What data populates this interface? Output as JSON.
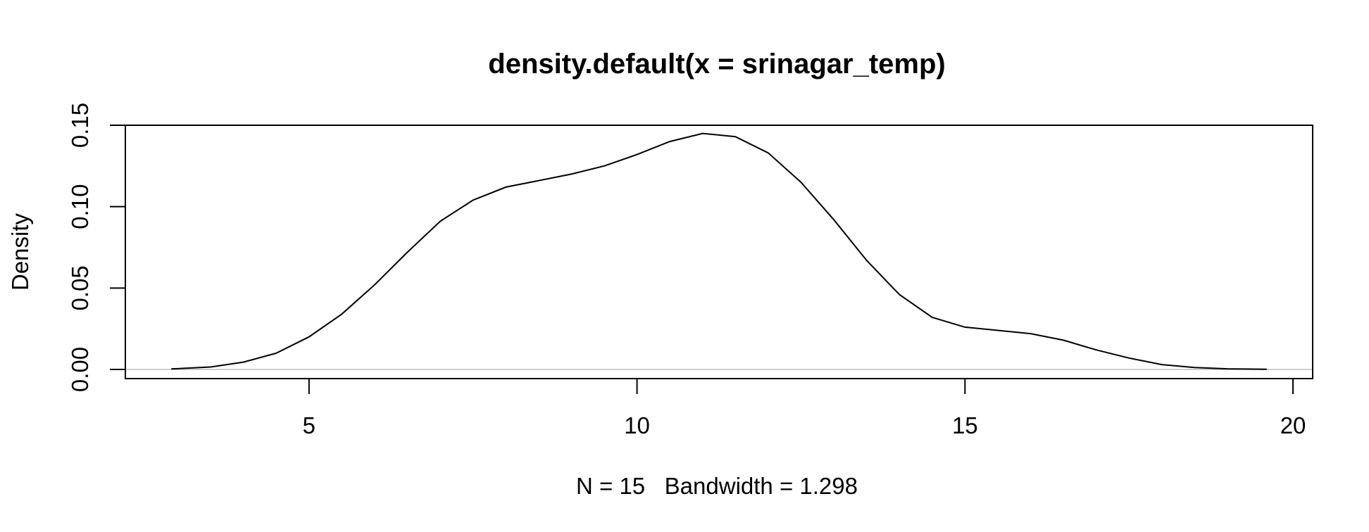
{
  "chart_data": {
    "type": "line",
    "title": "density.default(x = srinagar_temp)",
    "xlabel": "N = 15   Bandwidth = 1.298",
    "ylabel": "Density",
    "xlim": [
      2.2,
      20.3
    ],
    "ylim": [
      0,
      0.15
    ],
    "x_ticks": [
      5,
      10,
      15,
      20
    ],
    "y_ticks": [
      0.0,
      0.05,
      0.1,
      0.15
    ],
    "x_tick_labels": [
      "5",
      "10",
      "15",
      "20"
    ],
    "y_tick_labels": [
      "0.00",
      "0.05",
      "0.10",
      "0.15"
    ],
    "zero_line": true,
    "grid": false,
    "series": [
      {
        "x": [
          2.9,
          3.5,
          4.0,
          4.5,
          5.0,
          5.5,
          6.0,
          6.5,
          7.0,
          7.5,
          8.0,
          8.5,
          9.0,
          9.5,
          10.0,
          10.5,
          11.0,
          11.5,
          12.0,
          12.5,
          13.0,
          13.5,
          14.0,
          14.5,
          15.0,
          15.5,
          16.0,
          16.5,
          17.0,
          17.5,
          18.0,
          18.5,
          19.0,
          19.6
        ],
        "y": [
          0.0003,
          0.0015,
          0.0045,
          0.01,
          0.02,
          0.034,
          0.052,
          0.072,
          0.091,
          0.104,
          0.112,
          0.116,
          0.12,
          0.125,
          0.132,
          0.14,
          0.145,
          0.143,
          0.133,
          0.115,
          0.092,
          0.067,
          0.046,
          0.032,
          0.026,
          0.024,
          0.022,
          0.018,
          0.012,
          0.007,
          0.003,
          0.0012,
          0.0004,
          0.0001
        ]
      }
    ]
  }
}
